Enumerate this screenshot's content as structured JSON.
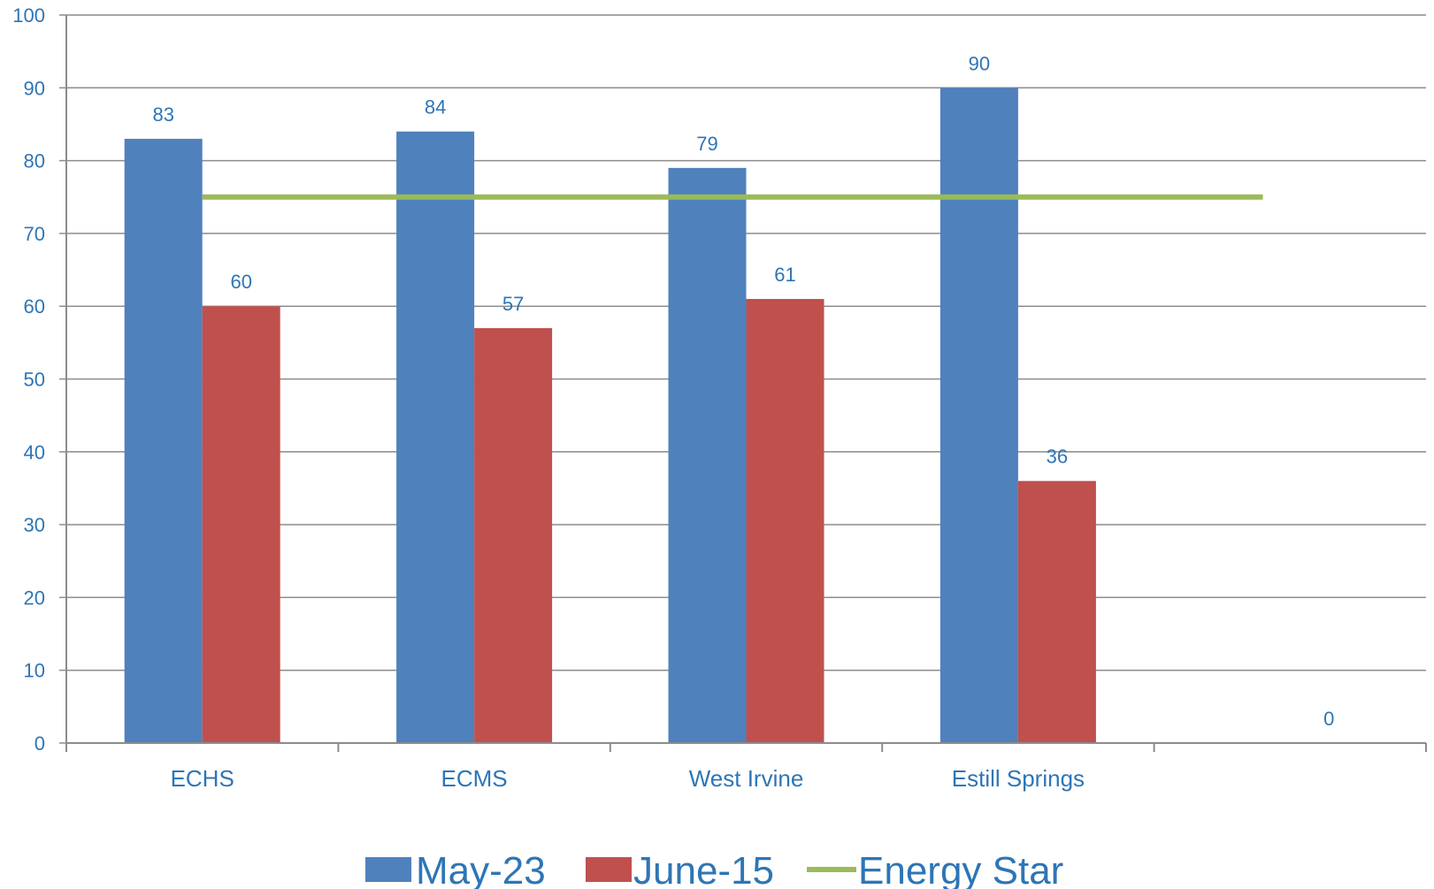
{
  "chart_data": {
    "type": "bar",
    "categories": [
      "ECHS",
      "ECMS",
      "West Irvine",
      "Estill Springs",
      ""
    ],
    "series": [
      {
        "name": "May-23",
        "type": "bar",
        "color": "#4f81bd",
        "values": [
          83,
          84,
          79,
          90,
          null
        ],
        "labels": [
          "83",
          "84",
          "79",
          "90",
          ""
        ]
      },
      {
        "name": "June-15",
        "type": "bar",
        "color": "#c0504d",
        "values": [
          60,
          57,
          61,
          36,
          null
        ],
        "labels": [
          "60",
          "57",
          "61",
          "36",
          "0"
        ]
      },
      {
        "name": "Energy Star",
        "type": "line",
        "color": "#9bbb59",
        "values": [
          75,
          75,
          75,
          75,
          75
        ]
      }
    ],
    "ylim": [
      0,
      100
    ],
    "yticks": [
      0,
      10,
      20,
      30,
      40,
      50,
      60,
      70,
      80,
      90,
      100
    ],
    "grid": true,
    "legend_position": "bottom"
  }
}
